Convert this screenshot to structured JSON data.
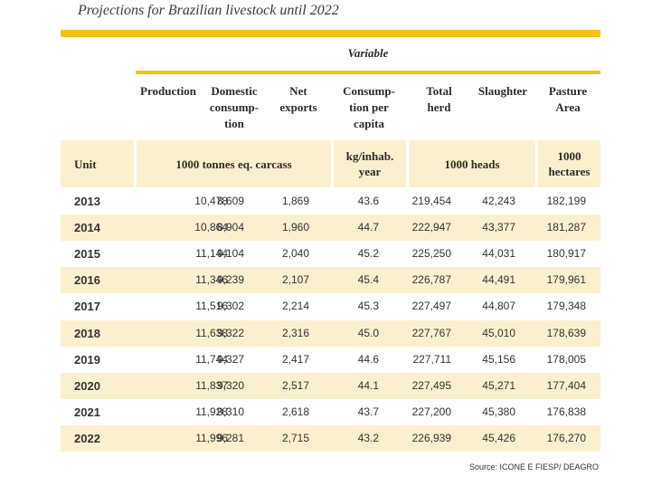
{
  "title": "Projections for Brazilian livestock until 2022",
  "variable_header": "Variable",
  "columns": [
    "Production",
    "Domestic\nconsump-\ntion",
    "Net\nexports",
    "Consump-\ntion per\ncapita",
    "Total\nherd",
    "Slaughter",
    "Pasture\nArea"
  ],
  "units": {
    "label": "Unit",
    "carcass": "1000 tonnes eq. carcass",
    "per_capita": "kg/inhab.\nyear",
    "heads": "1000 heads",
    "hectares": "1000\nhectares"
  },
  "rows": [
    {
      "year": "2013",
      "values": [
        "10,478",
        "8,609",
        "1,869",
        "43.6",
        "219,454",
        "42,243",
        "182,199"
      ]
    },
    {
      "year": "2014",
      "values": [
        "10,864",
        "8,904",
        "1,960",
        "44.7",
        "222,947",
        "43,377",
        "181,287"
      ]
    },
    {
      "year": "2015",
      "values": [
        "11,144",
        "9,104",
        "2,040",
        "45.2",
        "225,250",
        "44,031",
        "180,917"
      ]
    },
    {
      "year": "2016",
      "values": [
        "11,346",
        "9,239",
        "2,107",
        "45.4",
        "226,787",
        "44,491",
        "179,961"
      ]
    },
    {
      "year": "2017",
      "values": [
        "11,516",
        "9,302",
        "2,214",
        "45.3",
        "227,497",
        "44,807",
        "179,348"
      ]
    },
    {
      "year": "2018",
      "values": [
        "11,638",
        "9,322",
        "2,316",
        "45.0",
        "227,767",
        "45,010",
        "178,639"
      ]
    },
    {
      "year": "2019",
      "values": [
        "11,744",
        "9,327",
        "2,417",
        "44.6",
        "227,711",
        "45,156",
        "178,005"
      ]
    },
    {
      "year": "2020",
      "values": [
        "11,837",
        "9,320",
        "2,517",
        "44.1",
        "227,495",
        "45,271",
        "177,404"
      ]
    },
    {
      "year": "2021",
      "values": [
        "11,928",
        "9,310",
        "2,618",
        "43.7",
        "227,200",
        "45,380",
        "176,838"
      ]
    },
    {
      "year": "2022",
      "values": [
        "11,996",
        "9,281",
        "2,715",
        "43.2",
        "226,939",
        "45,426",
        "176,270"
      ]
    }
  ],
  "source": "Source: ICONE E FIESP/ DEAGRO",
  "colors": {
    "accent": "#f2c312",
    "shade": "#fbf0cd"
  }
}
